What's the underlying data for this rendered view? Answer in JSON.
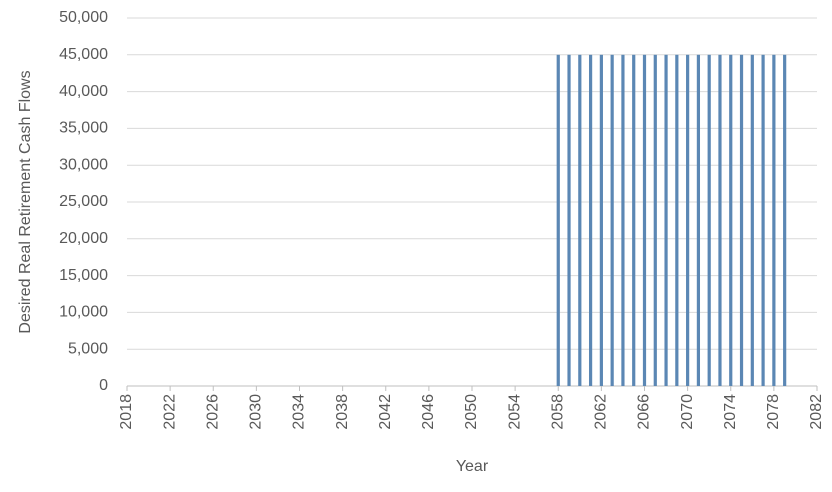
{
  "chart_data": {
    "type": "bar",
    "y_label": "Desired Real Retirement Cash Flows",
    "x_label": "Year",
    "x": [
      2058,
      2059,
      2060,
      2061,
      2062,
      2063,
      2064,
      2065,
      2066,
      2067,
      2068,
      2069,
      2070,
      2071,
      2072,
      2073,
      2074,
      2075,
      2076,
      2077,
      2078,
      2079
    ],
    "values": [
      45000,
      45000,
      45000,
      45000,
      45000,
      45000,
      45000,
      45000,
      45000,
      45000,
      45000,
      45000,
      45000,
      45000,
      45000,
      45000,
      45000,
      45000,
      45000,
      45000,
      45000,
      45000
    ],
    "color": "#5b87b4",
    "xlim": [
      2018,
      2082
    ],
    "xticks": [
      2018,
      2022,
      2026,
      2030,
      2034,
      2038,
      2042,
      2046,
      2050,
      2054,
      2058,
      2062,
      2066,
      2070,
      2074,
      2078,
      2082
    ],
    "ylim": [
      0,
      50000
    ],
    "yticks": [
      0,
      {
        "value": 5000,
        "label": "5,000"
      },
      {
        "value": 10000,
        "label": "10,000"
      },
      {
        "value": 15000,
        "label": "15,000"
      },
      {
        "value": 20000,
        "label": "20,000"
      },
      {
        "value": 25000,
        "label": "25,000"
      },
      {
        "value": 30000,
        "label": "30,000"
      },
      {
        "value": 35000,
        "label": "35,000"
      },
      {
        "value": 40000,
        "label": "40,000"
      },
      {
        "value": 45000,
        "label": "45,000"
      },
      {
        "value": 50000,
        "label": "50,000"
      }
    ],
    "grid": true
  }
}
